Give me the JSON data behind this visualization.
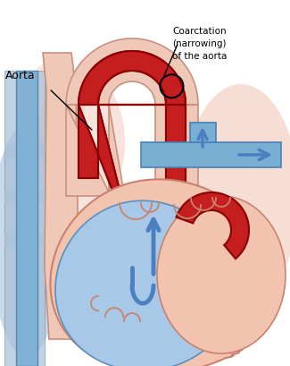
{
  "bg_color": "#ffffff",
  "heart_pink": "#f2c4b0",
  "heart_pink_edge": "#c8826e",
  "heart_blue": "#a8c8e8",
  "heart_blue_edge": "#5a90c0",
  "red_fill": "#c41e1e",
  "red_edge": "#8b0000",
  "blue_vessel": "#7aafd4",
  "blue_vessel_edge": "#4a80b4",
  "pink_vessel": "#f0c8b8",
  "pink_vessel_edge": "#c89080",
  "left_bg_blue": "#a8c0d8",
  "arrow_blue": "#4a80c0",
  "text_color": "#000000",
  "label_aorta": "Aorta",
  "label_c1": "Coarctation",
  "label_c2": "(narrowing)",
  "label_c3": "of the aorta",
  "figsize": [
    3.25,
    4.1
  ],
  "dpi": 100
}
